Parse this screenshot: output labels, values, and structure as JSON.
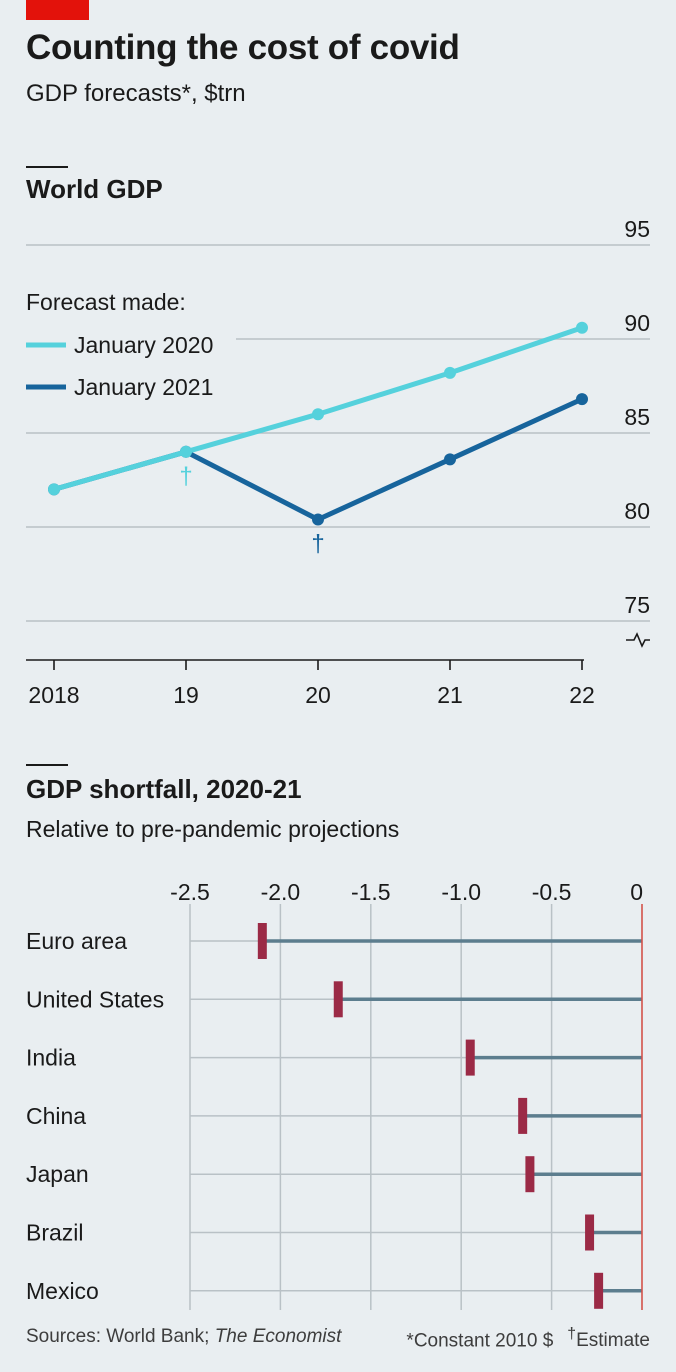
{
  "header": {
    "title": "Counting the cost of covid",
    "subtitle": "GDP forecasts*, $trn"
  },
  "colors": {
    "accent_red": "#e3120b",
    "jan2020": "#55d1dc",
    "jan2021": "#17649c",
    "shortfall_line": "#5c7d8e",
    "shortfall_marker": "#9b2a46",
    "zero_line": "#d3524a",
    "grid": "#b9c1c6"
  },
  "chart_data": [
    {
      "type": "line",
      "title": "World GDP",
      "x": [
        "2018",
        "19",
        "20",
        "21",
        "22"
      ],
      "ylim": [
        75,
        95
      ],
      "yticks": [
        75,
        80,
        85,
        90,
        95
      ],
      "y_axis_broken": true,
      "grid": true,
      "legend_title": "Forecast made:",
      "legend_position": "top-left",
      "series": [
        {
          "name": "January 2020",
          "values": [
            82.0,
            84.0,
            86.0,
            88.2,
            90.6
          ]
        },
        {
          "name": "January 2021",
          "values": [
            82.0,
            84.0,
            80.4,
            83.6,
            86.8
          ]
        }
      ],
      "annotations": [
        {
          "x": "19",
          "text": "†",
          "series": "January 2020"
        },
        {
          "x": "20",
          "text": "†",
          "series": "January 2021"
        }
      ]
    },
    {
      "type": "bar",
      "title": "GDP shortfall, 2020-21",
      "subtitle": "Relative to pre-pandemic projections",
      "orientation": "horizontal",
      "categories": [
        "Euro area",
        "United States",
        "India",
        "China",
        "Japan",
        "Brazil",
        "Mexico"
      ],
      "values": [
        -2.1,
        -1.68,
        -0.95,
        -0.66,
        -0.62,
        -0.29,
        -0.24
      ],
      "xlim": [
        -2.5,
        0
      ],
      "xticks": [
        -2.5,
        -2.0,
        -1.5,
        -1.0,
        -0.5,
        0
      ],
      "xtick_labels": [
        "-2.5",
        "-2.0",
        "-1.5",
        "-1.0",
        "-0.5",
        "0"
      ],
      "grid": true
    }
  ],
  "footer": {
    "sources_prefix": "Sources: World Bank; ",
    "sources_italic": "The Economist",
    "note_constant": "*Constant 2010 $",
    "note_estimate_mark": "†",
    "note_estimate": "Estimate"
  }
}
